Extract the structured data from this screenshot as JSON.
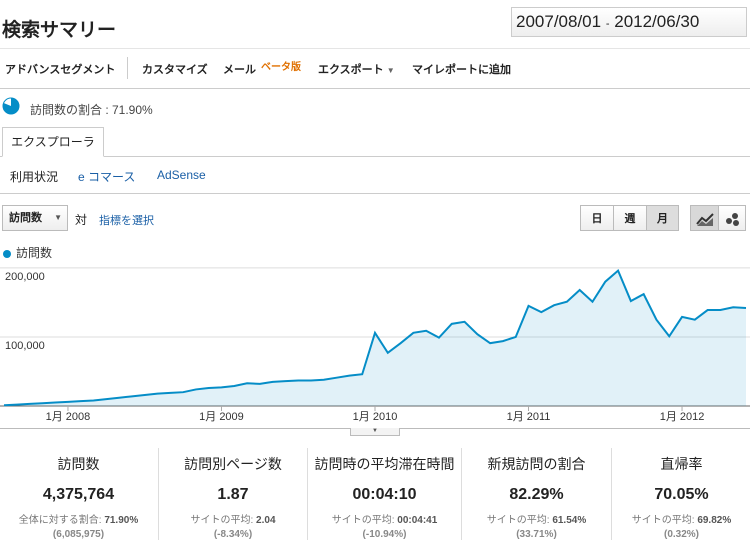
{
  "header": {
    "title": "検索サマリー",
    "date_start": "2007/08/01",
    "date_sep": "-",
    "date_end": "2012/06/30"
  },
  "toolbar": {
    "segments": "アドバンスセグメント",
    "customize": "カスタマイズ",
    "email": "メール",
    "beta": "ベータ版",
    "export": "エクスポート",
    "add_report": "マイレポートに追加"
  },
  "share": "訪問数の割合 : 71.90%",
  "tab": "エクスプローラ",
  "subtabs": [
    "利用状況",
    "e コマース",
    "AdSense"
  ],
  "controls": {
    "metric": "訪問数",
    "versus": "対",
    "select_metric": "指標を選択",
    "periods": [
      "日",
      "週",
      "月"
    ]
  },
  "chart_data": {
    "type": "line",
    "legend": "訪問数",
    "categories": [
      null,
      null,
      null,
      null,
      null,
      "1月 2008",
      null,
      null,
      null,
      null,
      null,
      null,
      null,
      null,
      null,
      null,
      null,
      "1月 2009",
      null,
      null,
      null,
      null,
      null,
      null,
      null,
      null,
      null,
      null,
      null,
      "1月 2010",
      null,
      null,
      null,
      null,
      null,
      null,
      null,
      null,
      null,
      null,
      null,
      "1月 2011",
      null,
      null,
      null,
      null,
      null,
      null,
      null,
      null,
      null,
      null,
      null,
      "1月 2012",
      null,
      null,
      null,
      null,
      null
    ],
    "series": [
      {
        "name": "訪問数",
        "color": "#058dc7",
        "values": [
          1000,
          2000,
          3000,
          4000,
          5000,
          6000,
          7000,
          8000,
          10000,
          12000,
          14000,
          16000,
          18000,
          19000,
          20000,
          24000,
          26000,
          27000,
          29000,
          33000,
          32000,
          35000,
          36000,
          37000,
          37000,
          38000,
          41000,
          44000,
          46000,
          106000,
          77000,
          91000,
          106000,
          109000,
          99000,
          119000,
          122000,
          104000,
          91000,
          94000,
          100000,
          145000,
          136000,
          146000,
          151000,
          168000,
          151000,
          180000,
          196000,
          152000,
          162000,
          125000,
          101000,
          129000,
          125000,
          139000,
          139000,
          143000,
          142000
        ]
      }
    ],
    "ylim": [
      0,
      210000
    ],
    "yticks": [
      {
        "value": 100000,
        "label": "100,000"
      },
      {
        "value": 200000,
        "label": "200,000"
      }
    ],
    "grid": true
  },
  "stats": [
    {
      "label": "訪問数",
      "value": "4,375,764",
      "compare_label": "全体に対する割合:",
      "compare_value": "71.90%",
      "note": "(6,085,975)"
    },
    {
      "label": "訪問別ページ数",
      "value": "1.87",
      "compare_label": "サイトの平均:",
      "compare_value": "2.04",
      "note": "(-8.34%)"
    },
    {
      "label": "訪問時の平均滞在時間",
      "value": "00:04:10",
      "compare_label": "サイトの平均:",
      "compare_value": "00:04:41",
      "note": "(-10.94%)"
    },
    {
      "label": "新規訪問の割合",
      "value": "82.29%",
      "compare_label": "サイトの平均:",
      "compare_value": "61.54%",
      "note": "(33.71%)"
    },
    {
      "label": "直帰率",
      "value": "70.05%",
      "compare_label": "サイトの平均:",
      "compare_value": "69.82%",
      "note": "(0.32%)"
    }
  ]
}
